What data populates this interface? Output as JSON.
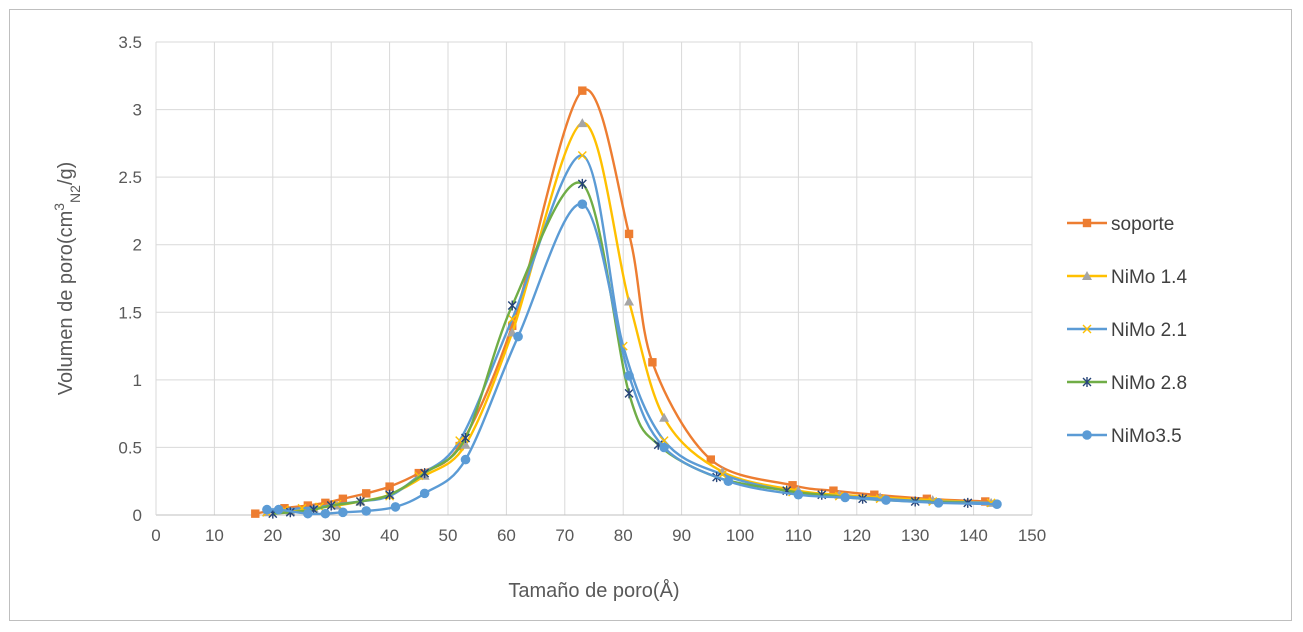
{
  "chart_data": {
    "type": "scatter",
    "xlabel": "Tamaño de poro(Å)",
    "ylabel_parts": {
      "main": "Volumen de poro(cm",
      "sup": "3",
      "sub": "N2",
      "tail": "/g)"
    },
    "xlim": [
      0,
      150
    ],
    "ylim": [
      0,
      3.5
    ],
    "x_ticks": [
      "0",
      "10",
      "20",
      "30",
      "40",
      "50",
      "60",
      "70",
      "80",
      "90",
      "100",
      "110",
      "120",
      "130",
      "140",
      "150"
    ],
    "y_ticks": [
      "0",
      "0.5",
      "1",
      "1.5",
      "2",
      "2.5",
      "3",
      "3.5"
    ],
    "grid": true,
    "legend_position": "right",
    "series": [
      {
        "name": "soporte",
        "color": "#ED7D31",
        "marker": "square",
        "x": [
          17,
          22,
          26,
          29,
          32,
          36,
          40,
          45,
          52,
          61,
          73,
          81,
          85,
          95,
          109,
          116,
          123,
          132,
          142
        ],
        "y": [
          0.01,
          0.05,
          0.07,
          0.09,
          0.12,
          0.16,
          0.21,
          0.31,
          0.51,
          1.4,
          3.14,
          2.08,
          1.13,
          0.41,
          0.22,
          0.18,
          0.15,
          0.12,
          0.1
        ]
      },
      {
        "name": "NiMo 1.4",
        "color": "#FFC000",
        "marker": "triangle",
        "x": [
          19,
          23,
          27,
          31,
          35,
          40,
          46,
          53,
          61,
          73,
          81,
          87,
          97,
          110,
          117,
          124,
          133,
          143
        ],
        "y": [
          0.02,
          0.03,
          0.05,
          0.07,
          0.1,
          0.15,
          0.29,
          0.52,
          1.35,
          2.9,
          1.58,
          0.72,
          0.32,
          0.18,
          0.15,
          0.13,
          0.11,
          0.09
        ]
      },
      {
        "name": "NiMo 2.1",
        "color": "#5B9BD5",
        "marker": "x",
        "x": [
          19,
          22,
          25,
          28,
          31,
          35,
          40,
          45,
          52,
          61,
          73,
          80,
          87,
          97,
          109,
          117,
          124,
          133,
          143
        ],
        "y": [
          0.02,
          0.04,
          0.05,
          0.06,
          0.08,
          0.1,
          0.14,
          0.29,
          0.55,
          1.45,
          2.66,
          1.25,
          0.55,
          0.3,
          0.17,
          0.14,
          0.12,
          0.1,
          0.09
        ]
      },
      {
        "name": "NiMo 2.8",
        "color": "#70AD47",
        "marker": "star",
        "x": [
          20,
          23,
          27,
          30,
          35,
          40,
          46,
          53,
          61,
          73,
          81,
          86,
          96,
          108,
          114,
          121,
          130,
          139
        ],
        "y": [
          0.01,
          0.02,
          0.04,
          0.07,
          0.1,
          0.15,
          0.31,
          0.57,
          1.55,
          2.45,
          0.9,
          0.52,
          0.28,
          0.18,
          0.15,
          0.12,
          0.1,
          0.09
        ]
      },
      {
        "name": "NiMo3.5",
        "color": "#5B9BD5",
        "marker": "circle",
        "x": [
          19,
          21,
          26,
          29,
          32,
          36,
          41,
          46,
          53,
          62,
          73,
          81,
          87,
          98,
          110,
          118,
          125,
          134,
          144
        ],
        "y": [
          0.04,
          0.04,
          0.01,
          0.01,
          0.02,
          0.03,
          0.06,
          0.16,
          0.41,
          1.32,
          2.3,
          1.03,
          0.5,
          0.25,
          0.15,
          0.13,
          0.11,
          0.09,
          0.08
        ]
      }
    ]
  }
}
